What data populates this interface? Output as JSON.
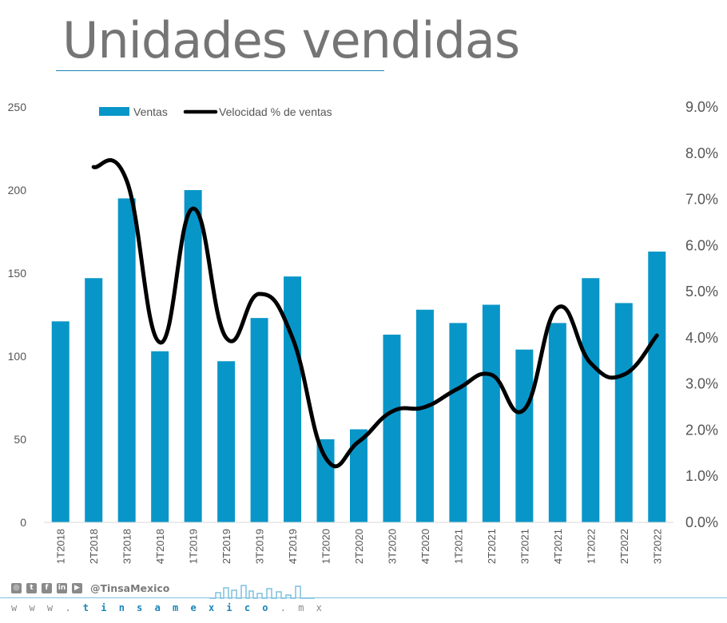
{
  "title": "Unidades vendidas",
  "footer": {
    "social_icons": [
      "instagram-icon",
      "twitter-icon",
      "facebook-icon",
      "linkedin-icon",
      "youtube-icon"
    ],
    "handle": "@TinsaMexico",
    "website_prefix": "w w w . ",
    "website_brand": "t i n s a m e x i c o",
    "website_suffix": " . m x"
  },
  "colors": {
    "bar": "#0896C8",
    "line": "#000000",
    "title": "#757575",
    "accent": "#1a86b8"
  },
  "chart_data": {
    "type": "bar",
    "categories": [
      "1T2018",
      "2T2018",
      "3T2018",
      "4T2018",
      "1T2019",
      "2T2019",
      "3T2019",
      "4T2019",
      "1T2020",
      "2T2020",
      "3T2020",
      "4T2020",
      "1T2021",
      "2T2021",
      "3T2021",
      "4T2021",
      "1T2022",
      "2T2022",
      "3T2022"
    ],
    "series": [
      {
        "name": "Ventas",
        "type": "bar",
        "axis": "left",
        "values": [
          121,
          147,
          195,
          103,
          200,
          97,
          123,
          148,
          50,
          56,
          113,
          128,
          120,
          131,
          104,
          120,
          147,
          132,
          163
        ]
      },
      {
        "name": "Velocidad % de ventas",
        "type": "line",
        "axis": "right",
        "values": [
          null,
          7.7,
          7.4,
          3.9,
          6.8,
          4.0,
          4.95,
          4.0,
          1.4,
          1.75,
          2.4,
          2.5,
          2.9,
          3.2,
          2.45,
          4.65,
          3.45,
          3.2,
          4.05
        ]
      }
    ],
    "y_left": {
      "min": 0,
      "max": 250,
      "ticks": [
        "0",
        "50",
        "100",
        "150",
        "200",
        "250"
      ]
    },
    "y_right": {
      "min": 0,
      "max": 9,
      "ticks": [
        "0.0%",
        "1.0%",
        "2.0%",
        "3.0%",
        "4.0%",
        "5.0%",
        "6.0%",
        "7.0%",
        "8.0%",
        "9.0%"
      ]
    },
    "legend_position": "top-left",
    "grid": false
  }
}
